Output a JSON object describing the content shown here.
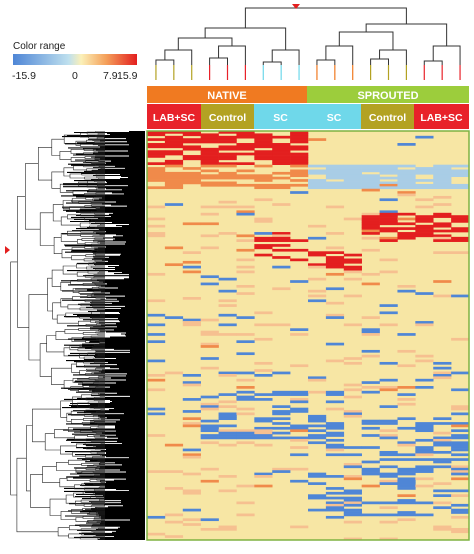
{
  "legend": {
    "title": "Color range",
    "ticks": [
      "-15.9",
      "0",
      "7.9",
      "15.9"
    ],
    "colors": [
      "#4f86d6",
      "#bfe0ee",
      "#fbf0b8",
      "#f4a05a",
      "#e31f1f"
    ]
  },
  "groups": [
    {
      "label": "NATIVE",
      "color": "#f07a21"
    },
    {
      "label": "SPROUTED",
      "color": "#9ccd3c"
    }
  ],
  "conditions": [
    {
      "label": "LAB+SC",
      "color": "#e8222a",
      "text_color": "#ffffff"
    },
    {
      "label": "Control",
      "color": "#b3a223",
      "text_color": "#ffffff"
    },
    {
      "label": "SC",
      "color": "#6fd8ea",
      "text_color": "#ffffff"
    },
    {
      "label": "SC",
      "color": "#6fd8ea",
      "text_color": "#ffffff"
    },
    {
      "label": "Control",
      "color": "#b3a223",
      "text_color": "#ffffff"
    },
    {
      "label": "LAB+SC",
      "color": "#e8222a",
      "text_color": "#ffffff"
    }
  ],
  "chart_data": {
    "type": "heatmap",
    "title": "",
    "color_scale": {
      "min": -15.9,
      "max": 15.9,
      "ticks": [
        -15.9,
        0,
        7.9,
        15.9
      ],
      "label": "Color range"
    },
    "column_groups": [
      "NATIVE",
      "SPROUTED"
    ],
    "column_conditions": [
      "LAB+SC",
      "Control",
      "SC",
      "SC",
      "Control",
      "LAB+SC"
    ],
    "row_dendrogram": true,
    "column_dendrogram": true
  }
}
